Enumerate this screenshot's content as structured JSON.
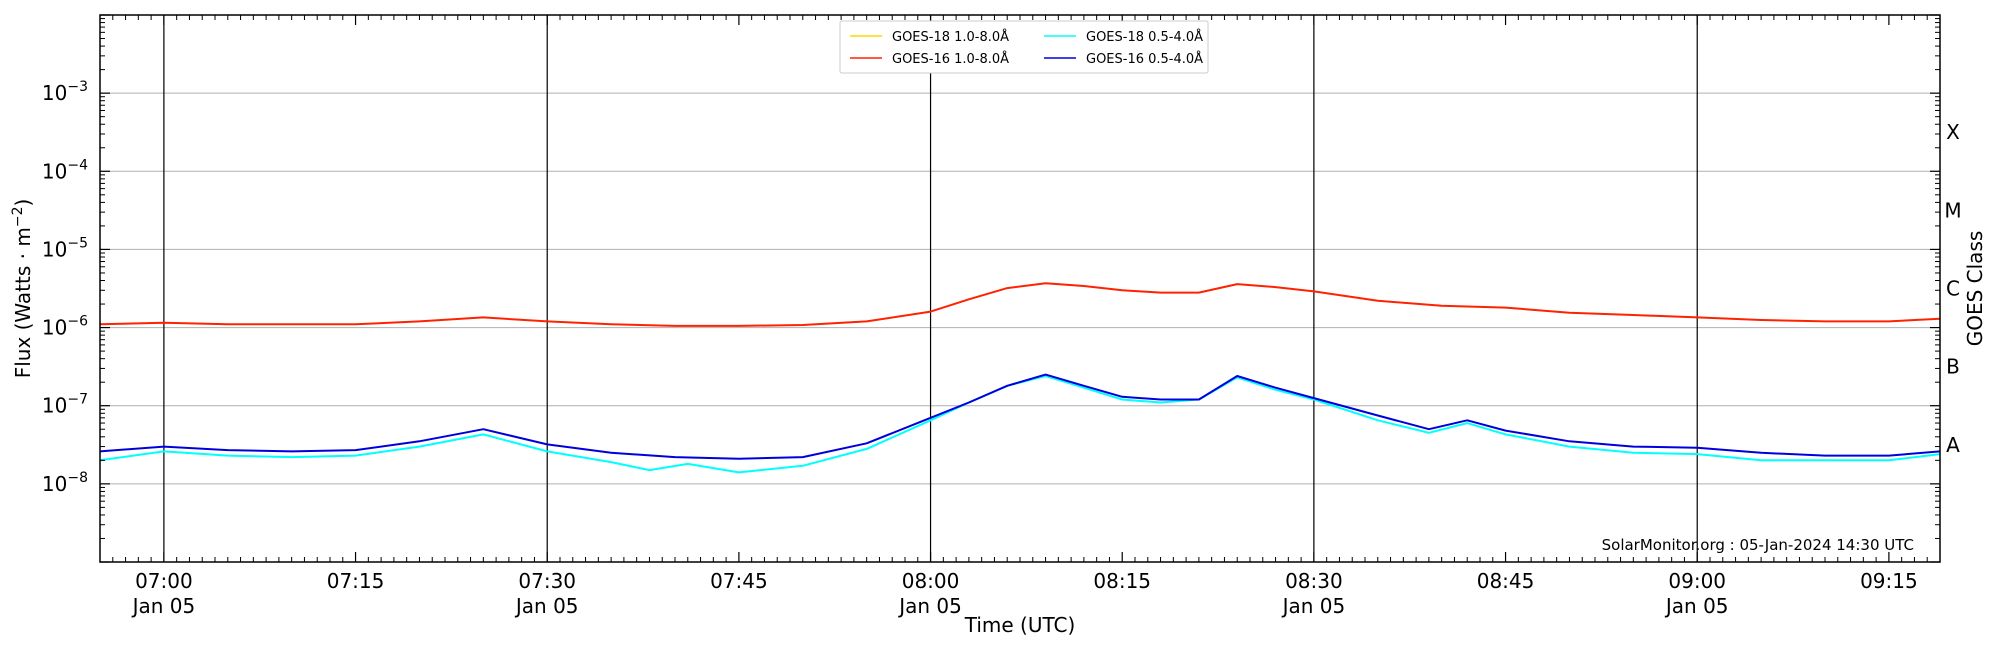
{
  "chart_data": {
    "type": "line",
    "xlabel": "Time (UTC)",
    "ylabel_main": "Flux (Watts · m",
    "ylabel_exp": "−2",
    "ylabel_close": ")",
    "right_axis_label": "GOES Class",
    "xlim": [
      "06:55",
      "09:19"
    ],
    "ylim": [
      1e-09,
      0.01
    ],
    "y_scale": "log",
    "grid": "horizontal",
    "legend_position": "top-center",
    "annotation": "SolarMonitor.org : 05-Jan-2024 14:30 UTC",
    "x_ticks": [
      {
        "time": "07:00",
        "line1": "07:00",
        "line2": "Jan 05"
      },
      {
        "time": "07:15",
        "line1": "07:15",
        "line2": ""
      },
      {
        "time": "07:30",
        "line1": "07:30",
        "line2": "Jan 05"
      },
      {
        "time": "07:45",
        "line1": "07:45",
        "line2": ""
      },
      {
        "time": "08:00",
        "line1": "08:00",
        "line2": "Jan 05"
      },
      {
        "time": "08:15",
        "line1": "08:15",
        "line2": ""
      },
      {
        "time": "08:30",
        "line1": "08:30",
        "line2": "Jan 05"
      },
      {
        "time": "08:45",
        "line1": "08:45",
        "line2": ""
      },
      {
        "time": "09:00",
        "line1": "09:00",
        "line2": "Jan 05"
      },
      {
        "time": "09:15",
        "line1": "09:15",
        "line2": ""
      }
    ],
    "vertical_lines": [
      "07:00",
      "07:30",
      "08:00",
      "08:30",
      "09:00"
    ],
    "y_ticks": [
      {
        "exp": -8,
        "base": "10",
        "sup": "−8"
      },
      {
        "exp": -7,
        "base": "10",
        "sup": "−7"
      },
      {
        "exp": -6,
        "base": "10",
        "sup": "−6"
      },
      {
        "exp": -5,
        "base": "10",
        "sup": "−5"
      },
      {
        "exp": -4,
        "base": "10",
        "sup": "−4"
      },
      {
        "exp": -3,
        "base": "10",
        "sup": "−3"
      }
    ],
    "goes_classes": [
      {
        "label": "A",
        "exp": -8
      },
      {
        "label": "B",
        "exp": -7
      },
      {
        "label": "C",
        "exp": -6
      },
      {
        "label": "M",
        "exp": -5
      },
      {
        "label": "X",
        "exp": -4
      }
    ],
    "series": [
      {
        "name": "GOES-18 1.0-8.0Å",
        "color": "#ffd700",
        "points": []
      },
      {
        "name": "GOES-16 1.0-8.0Å",
        "color": "#ff2200",
        "points": [
          [
            "06:55",
            1.1e-06
          ],
          [
            "07:00",
            1.15e-06
          ],
          [
            "07:05",
            1.1e-06
          ],
          [
            "07:10",
            1.1e-06
          ],
          [
            "07:15",
            1.1e-06
          ],
          [
            "07:20",
            1.2e-06
          ],
          [
            "07:25",
            1.35e-06
          ],
          [
            "07:30",
            1.2e-06
          ],
          [
            "07:35",
            1.1e-06
          ],
          [
            "07:40",
            1.05e-06
          ],
          [
            "07:45",
            1.05e-06
          ],
          [
            "07:50",
            1.08e-06
          ],
          [
            "07:55",
            1.2e-06
          ],
          [
            "08:00",
            1.6e-06
          ],
          [
            "08:03",
            2.3e-06
          ],
          [
            "08:06",
            3.2e-06
          ],
          [
            "08:09",
            3.7e-06
          ],
          [
            "08:12",
            3.4e-06
          ],
          [
            "08:15",
            3e-06
          ],
          [
            "08:18",
            2.8e-06
          ],
          [
            "08:21",
            2.8e-06
          ],
          [
            "08:24",
            3.6e-06
          ],
          [
            "08:27",
            3.3e-06
          ],
          [
            "08:30",
            2.9e-06
          ],
          [
            "08:35",
            2.2e-06
          ],
          [
            "08:40",
            1.9e-06
          ],
          [
            "08:45",
            1.8e-06
          ],
          [
            "08:50",
            1.55e-06
          ],
          [
            "08:55",
            1.45e-06
          ],
          [
            "09:00",
            1.35e-06
          ],
          [
            "09:05",
            1.25e-06
          ],
          [
            "09:10",
            1.2e-06
          ],
          [
            "09:15",
            1.2e-06
          ],
          [
            "09:19",
            1.3e-06
          ]
        ]
      },
      {
        "name": "GOES-18 0.5-4.0Å",
        "color": "#00ffff",
        "points": [
          [
            "06:55",
            2e-08
          ],
          [
            "07:00",
            2.6e-08
          ],
          [
            "07:05",
            2.3e-08
          ],
          [
            "07:10",
            2.2e-08
          ],
          [
            "07:15",
            2.3e-08
          ],
          [
            "07:20",
            3e-08
          ],
          [
            "07:25",
            4.3e-08
          ],
          [
            "07:30",
            2.6e-08
          ],
          [
            "07:35",
            1.9e-08
          ],
          [
            "07:38",
            1.5e-08
          ],
          [
            "07:41",
            1.8e-08
          ],
          [
            "07:45",
            1.4e-08
          ],
          [
            "07:50",
            1.7e-08
          ],
          [
            "07:55",
            2.8e-08
          ],
          [
            "08:00",
            6.5e-08
          ],
          [
            "08:03",
            1.1e-07
          ],
          [
            "08:06",
            1.8e-07
          ],
          [
            "08:09",
            2.4e-07
          ],
          [
            "08:12",
            1.7e-07
          ],
          [
            "08:15",
            1.2e-07
          ],
          [
            "08:18",
            1.1e-07
          ],
          [
            "08:21",
            1.2e-07
          ],
          [
            "08:24",
            2.3e-07
          ],
          [
            "08:27",
            1.6e-07
          ],
          [
            "08:30",
            1.2e-07
          ],
          [
            "08:35",
            6.5e-08
          ],
          [
            "08:39",
            4.5e-08
          ],
          [
            "08:42",
            6e-08
          ],
          [
            "08:45",
            4.3e-08
          ],
          [
            "08:50",
            3e-08
          ],
          [
            "08:55",
            2.5e-08
          ],
          [
            "09:00",
            2.4e-08
          ],
          [
            "09:05",
            2e-08
          ],
          [
            "09:10",
            2e-08
          ],
          [
            "09:15",
            2e-08
          ],
          [
            "09:19",
            2.4e-08
          ]
        ]
      },
      {
        "name": "GOES-16 0.5-4.0Å",
        "color": "#0000dd",
        "points": [
          [
            "06:55",
            2.6e-08
          ],
          [
            "07:00",
            3e-08
          ],
          [
            "07:05",
            2.7e-08
          ],
          [
            "07:10",
            2.6e-08
          ],
          [
            "07:15",
            2.7e-08
          ],
          [
            "07:20",
            3.5e-08
          ],
          [
            "07:25",
            5e-08
          ],
          [
            "07:30",
            3.2e-08
          ],
          [
            "07:35",
            2.5e-08
          ],
          [
            "07:40",
            2.2e-08
          ],
          [
            "07:45",
            2.1e-08
          ],
          [
            "07:50",
            2.2e-08
          ],
          [
            "07:55",
            3.3e-08
          ],
          [
            "08:00",
            7e-08
          ],
          [
            "08:03",
            1.1e-07
          ],
          [
            "08:06",
            1.8e-07
          ],
          [
            "08:09",
            2.5e-07
          ],
          [
            "08:12",
            1.8e-07
          ],
          [
            "08:15",
            1.3e-07
          ],
          [
            "08:18",
            1.2e-07
          ],
          [
            "08:21",
            1.2e-07
          ],
          [
            "08:24",
            2.4e-07
          ],
          [
            "08:27",
            1.7e-07
          ],
          [
            "08:30",
            1.25e-07
          ],
          [
            "08:35",
            7.5e-08
          ],
          [
            "08:39",
            5e-08
          ],
          [
            "08:42",
            6.5e-08
          ],
          [
            "08:45",
            4.8e-08
          ],
          [
            "08:50",
            3.5e-08
          ],
          [
            "08:55",
            3e-08
          ],
          [
            "09:00",
            2.9e-08
          ],
          [
            "09:05",
            2.5e-08
          ],
          [
            "09:10",
            2.3e-08
          ],
          [
            "09:15",
            2.3e-08
          ],
          [
            "09:19",
            2.6e-08
          ]
        ]
      }
    ]
  }
}
